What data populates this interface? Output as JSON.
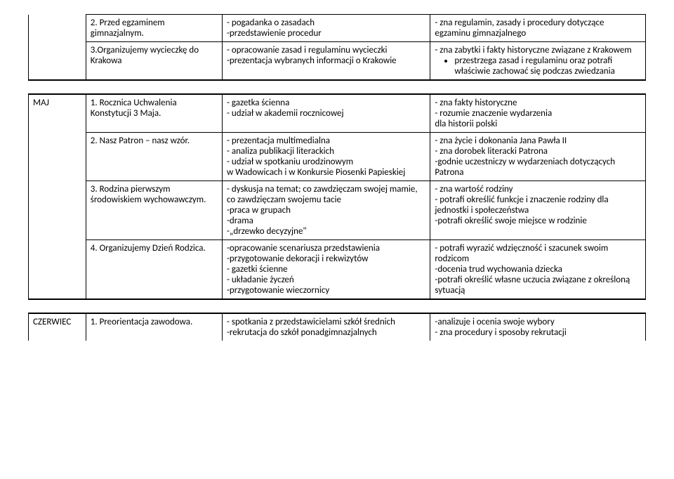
{
  "section1": {
    "rows": [
      {
        "topic": "2. Przed egzaminem gimnazjalnym.",
        "method": "- pogadanka o zasadach\n-przedstawienie procedur",
        "outcome": "- zna regulamin, zasady i procedury dotyczące egzaminu gimnazjalnego"
      },
      {
        "topic": "3.Organizujemy wycieczkę do Krakowa",
        "method": "- opracowanie zasad i regulaminu wycieczki\n-prezentacja wybranych informacji o Krakowie",
        "outcome_pre": "- zna zabytki i fakty historyczne związane z Krakowem",
        "outcome_bullet": "przestrzega zasad i regulaminu oraz potrafi właściwie zachować się podczas zwiedzania"
      }
    ]
  },
  "section2": {
    "month": "MAJ",
    "rows": [
      {
        "topic": "1. Rocznica Uchwalenia Konstytucji 3 Maja.",
        "method": "- gazetka ścienna\n- udział w akademii rocznicowej",
        "outcome": "- zna fakty historyczne\n- rozumie znaczenie wydarzenia\ndla historii polski"
      },
      {
        "topic": "2. Nasz Patron – nasz wzór.",
        "method": "- prezentacja multimedialna\n- analiza publikacji literackich\n- udział w spotkaniu urodzinowym\nw Wadowicach i w Konkursie Piosenki Papieskiej",
        "outcome": "- zna życie i dokonania Jana Pawła II\n- zna dorobek literacki Patrona\n-godnie uczestniczy w wydarzeniach dotyczących Patrona"
      },
      {
        "topic": "3. Rodzina pierwszym środowiskiem wychowawczym.",
        "method": "- dyskusja na temat; co zawdzięczam swojej mamie, co zawdzięczam swojemu tacie\n-praca w grupach\n-drama\n-„drzewko decyzyjne\"",
        "outcome": "- zna wartość rodziny\n- potrafi określić funkcje i znaczenie rodziny dla jednostki i społeczeństwa\n-potrafi określić swoje miejsce w rodzinie"
      },
      {
        "topic": "4. Organizujemy Dzień Rodzica.",
        "method": "-opracowanie scenariusza przedstawienia\n-przygotowanie dekoracji i rekwizytów\n- gazetki ścienne\n- układanie życzeń\n-przygotowanie wieczornicy",
        "outcome": "- potrafi wyrazić wdzięczność i szacunek swoim rodzicom\n-docenia trud wychowania dziecka\n-potrafi określić własne uczucia związane z określoną sytuacją"
      }
    ]
  },
  "section3": {
    "month": "CZERWIEC",
    "rows": [
      {
        "topic": "1. Preorientacja zawodowa.",
        "method": "- spotkania z przedstawicielami szkół średnich\n-rekrutacja do szkół ponadgimnazjalnych",
        "outcome": "-analizuje i ocenia swoje wybory\n- zna procedury i sposoby rekrutacji"
      }
    ]
  }
}
